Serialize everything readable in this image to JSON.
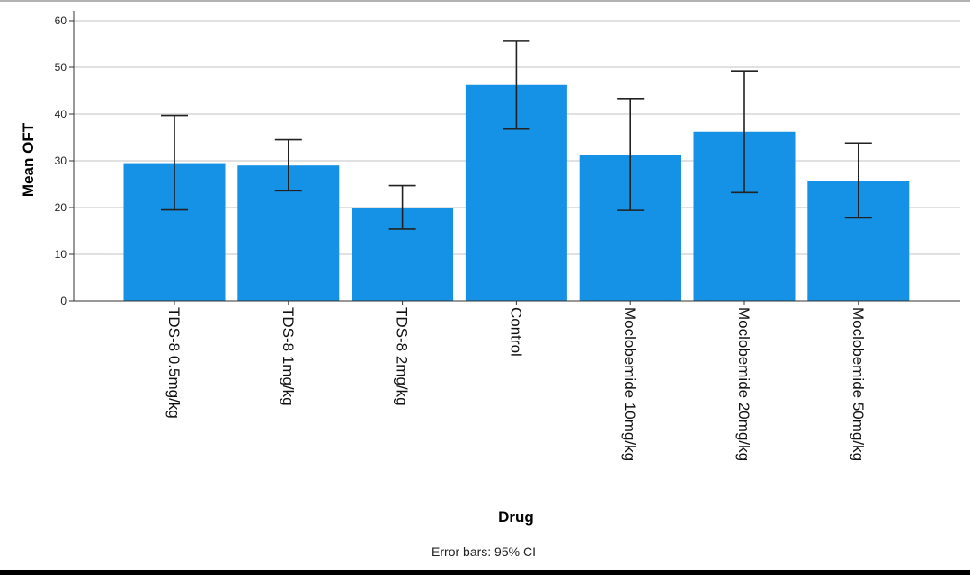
{
  "chart_data": {
    "type": "bar",
    "categories": [
      "TDS-8 0.5mg/kg",
      "TDS-8 1mg/kg",
      "TDS-8 2mg/kg",
      "Control",
      "Moclobemide 10mg/kg",
      "Moclobemide 20mg/kg",
      "Moclobemide 50mg/kg"
    ],
    "values": [
      29.5,
      29.0,
      20.0,
      46.2,
      31.3,
      36.2,
      25.7
    ],
    "error_low": [
      19.5,
      23.6,
      15.4,
      36.8,
      19.4,
      23.2,
      17.8
    ],
    "error_high": [
      39.7,
      34.5,
      24.7,
      55.6,
      43.3,
      49.2,
      33.8
    ],
    "xlabel": "Drug",
    "ylabel": "Mean OFT",
    "ylim": [
      0,
      60
    ],
    "yticks": [
      0,
      10,
      20,
      30,
      40,
      50,
      60
    ],
    "grid": true,
    "bar_color": "#1591e5",
    "footnote": "Error bars: 95% CI"
  }
}
